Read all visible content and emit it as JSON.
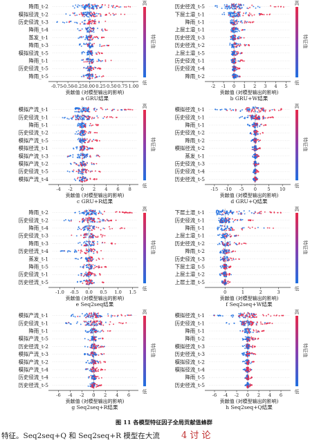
{
  "figure_caption": "图 11    各模型特征因子全局贡献值蜂群",
  "body_text": "特征。Seq2seq+Q 和 Seq2seq+R 模型在大流",
  "section_heading": "4  讨  论",
  "chart_data": [
    {
      "type": "scatter",
      "title": "a  GRU结果",
      "xlabel": "贡献值 (对模型输出的影响)",
      "colorbar": {
        "label": "特征值",
        "high": "高",
        "low": "低"
      },
      "features": [
        "降雨_t-2",
        "模拟径流_t-2",
        "历史径流_t-3",
        "降雨_t-4",
        "蒸发_t-1",
        "降雨_t-3",
        "模拟径流_t-5",
        "降雨_t-1",
        "历史径流_t-5",
        "降雨_t-5"
      ],
      "xticks": [
        -0.75,
        -0.5,
        -0.25,
        0.0,
        0.25,
        0.5,
        0.75,
        1.0
      ],
      "xtick_labels": [
        "-0.75",
        "-0.50",
        "-0.25",
        "0.00",
        "0.25",
        "0.50",
        "0.75",
        "1.00"
      ],
      "xlim": [
        -0.85,
        1.08
      ],
      "spread": [
        [
          -0.45,
          0.95
        ],
        [
          -0.55,
          0.8
        ],
        [
          -0.75,
          0.4
        ],
        [
          -0.3,
          0.5
        ],
        [
          -0.3,
          0.35
        ],
        [
          -0.25,
          0.45
        ],
        [
          -0.2,
          0.3
        ],
        [
          -0.2,
          0.5
        ],
        [
          -0.15,
          0.25
        ],
        [
          -0.2,
          0.35
        ]
      ]
    },
    {
      "type": "scatter",
      "title": "b  GRU+W结果",
      "xlabel": "贡献值 (对模型输出的影响)",
      "colorbar": {
        "label": "特征值",
        "high": "高",
        "low": "低"
      },
      "features": [
        "历史径流_t-5",
        "下层土湿_t-1",
        "降雨_t-1",
        "上层土湿_t-1",
        "历史径流_t-3",
        "历史径流_t-2",
        "上层土湿_t-5",
        "历史径流_t-1",
        "历史径流_t-4",
        "降雨_t-2"
      ],
      "xticks": [
        -2,
        -1,
        0,
        1,
        2,
        3,
        4,
        5
      ],
      "xtick_labels": [
        "-2",
        "-1",
        "0",
        "1",
        "2",
        "3",
        "4",
        "5"
      ],
      "xlim": [
        -2.4,
        5.3
      ],
      "spread": [
        [
          -1.8,
          5.0
        ],
        [
          -1.2,
          3.5
        ],
        [
          -0.5,
          2.0
        ],
        [
          -0.4,
          1.2
        ],
        [
          -0.4,
          1.0
        ],
        [
          -0.5,
          1.5
        ],
        [
          -0.3,
          0.8
        ],
        [
          -0.4,
          1.0
        ],
        [
          -0.3,
          0.6
        ],
        [
          -0.2,
          0.6
        ]
      ]
    },
    {
      "type": "scatter",
      "title": "c  GRU+R结果",
      "xlabel": "贡献值 (对模型输出的影响)",
      "colorbar": {
        "label": "特征值",
        "high": "高",
        "low": "低"
      },
      "features": [
        "模拟产流_t-1",
        "历史径流_t-1",
        "降雨_t-1",
        "历史径流_t-2",
        "模拟产流_t-5",
        "模拟径流_t-1",
        "模拟产流_t-3",
        "模拟产流_t-2",
        "历史径流_t-5",
        "模拟产流_t-4"
      ],
      "xticks": [
        -4,
        -2,
        0,
        2,
        4,
        6,
        8
      ],
      "xtick_labels": [
        "-4",
        "-2",
        "0",
        "2",
        "4",
        "6",
        "8"
      ],
      "xlim": [
        -5.0,
        9.2
      ],
      "spread": [
        [
          -1.5,
          8.5
        ],
        [
          -3.5,
          6.0
        ],
        [
          -1.0,
          3.0
        ],
        [
          -1.2,
          2.5
        ],
        [
          -1.0,
          3.0
        ],
        [
          -1.5,
          2.0
        ],
        [
          -2.5,
          4.0
        ],
        [
          -2.0,
          2.5
        ],
        [
          -2.5,
          3.0
        ],
        [
          -1.5,
          2.5
        ]
      ]
    },
    {
      "type": "scatter",
      "title": "d  GRU+Q结果",
      "xlabel": "贡献值 (对模型输出的影响)",
      "colorbar": {
        "label": "特征值",
        "high": "高",
        "low": "低"
      },
      "features": [
        "模拟径流_t-1",
        "历史径流_t-1",
        "降雨_t-1",
        "历史径流_t-2",
        "降雨_t-2",
        "模拟径流_t-2",
        "蒸发_t-1",
        "历史径流_t-3",
        "历史径流_t-4",
        "历史径流_t-5"
      ],
      "xticks": [
        -15,
        -10,
        -5,
        0,
        5,
        10
      ],
      "xtick_labels": [
        "-15",
        "-10",
        "-5",
        "0",
        "5",
        "10"
      ],
      "xlim": [
        -17,
        12.5
      ],
      "spread": [
        [
          -15.0,
          10.0
        ],
        [
          -6.0,
          7.0
        ],
        [
          -3.0,
          4.0
        ],
        [
          -2.0,
          3.0
        ],
        [
          -1.5,
          2.0
        ],
        [
          -1.5,
          2.0
        ],
        [
          -1.0,
          1.5
        ],
        [
          -1.0,
          1.5
        ],
        [
          -0.8,
          1.2
        ],
        [
          -0.8,
          1.0
        ]
      ]
    },
    {
      "type": "scatter",
      "title": "e  Seq2seq结果",
      "xlabel": "贡献值 (对模型输出的影响)",
      "colorbar": {
        "label": "特征值",
        "high": "高",
        "low": "低"
      },
      "features": [
        "降雨_t-2",
        "历史径流_t-2",
        "降雨_t-4",
        "历史径流_t-3",
        "降雨_t-3",
        "历史径流_t-4",
        "蒸发_t-1",
        "降雨_t-5",
        "历史径流_t-1",
        "历史径流_t-5"
      ],
      "xticks": [
        -1.0,
        -0.5,
        0.0,
        0.5,
        1.0,
        1.5
      ],
      "xtick_labels": [
        "-1.0",
        "-0.5",
        "0.0",
        "0.5",
        "1.0",
        "1.5"
      ],
      "xlim": [
        -1.25,
        1.65
      ],
      "spread": [
        [
          -0.5,
          1.5
        ],
        [
          -0.9,
          1.0
        ],
        [
          -0.4,
          1.3
        ],
        [
          -0.7,
          0.8
        ],
        [
          -0.4,
          1.0
        ],
        [
          -1.0,
          0.5
        ],
        [
          -0.5,
          0.5
        ],
        [
          -0.3,
          0.6
        ],
        [
          -0.5,
          0.4
        ],
        [
          -0.4,
          0.5
        ]
      ]
    },
    {
      "type": "scatter",
      "title": "f  Seq2seq+W结果",
      "xlabel": "贡献值 (对模型输出的影响)",
      "colorbar": {
        "label": "特征值",
        "high": "高",
        "low": "低"
      },
      "features": [
        "下层土湿_t-1",
        "历史径流_t-1",
        "降雨_t-1",
        "上层土湿_t-1",
        "历史径流_t-2",
        "降雨_t-2",
        "历史径流_t-3",
        "下层土湿_t-5",
        "上层土湿_t-2",
        "上层土湿_t-5"
      ],
      "xticks": [
        0,
        1,
        2,
        3
      ],
      "xtick_labels": [
        "0",
        "1",
        "2",
        "3"
      ],
      "xlim": [
        -0.9,
        3.6
      ],
      "spread": [
        [
          -0.5,
          3.4
        ],
        [
          -0.6,
          1.7
        ],
        [
          -0.6,
          2.9
        ],
        [
          -0.4,
          0.8
        ],
        [
          -0.4,
          1.2
        ],
        [
          -0.3,
          0.6
        ],
        [
          -0.4,
          0.8
        ],
        [
          -0.3,
          0.4
        ],
        [
          -0.3,
          0.4
        ],
        [
          -0.2,
          0.3
        ]
      ]
    },
    {
      "type": "scatter",
      "title": "g  Seq2seq+R结果",
      "xlabel": "贡献值 (对模型输出的影响)",
      "colorbar": {
        "label": "特征值",
        "high": "高",
        "low": "低"
      },
      "features": [
        "模拟产流_t-1",
        "历史径流_t-1",
        "降雨_t-1",
        "模拟产流_t-5",
        "历史径流_t-2",
        "模拟产流_t-3",
        "模拟产流_t-2",
        "模拟产流_t-4",
        "历史径流_t-4",
        "历史径流_t-5"
      ],
      "xticks": [
        -6,
        -4,
        -2,
        0,
        2,
        4,
        6
      ],
      "xtick_labels": [
        "-6",
        "-4",
        "-2",
        "0",
        "2",
        "4",
        "6"
      ],
      "xlim": [
        -7.0,
        7.4
      ],
      "spread": [
        [
          -4.5,
          7.0
        ],
        [
          -5.0,
          6.0
        ],
        [
          -1.5,
          3.0
        ],
        [
          -1.5,
          2.0
        ],
        [
          -1.5,
          2.0
        ],
        [
          -2.0,
          2.0
        ],
        [
          -1.5,
          2.0
        ],
        [
          -1.5,
          2.0
        ],
        [
          -1.0,
          1.5
        ],
        [
          -1.0,
          1.5
        ]
      ]
    },
    {
      "type": "scatter",
      "title": "h  Seq2seq+Q结果",
      "xlabel": "贡献值 (对模型输出的影响)",
      "colorbar": {
        "label": "特征值",
        "high": "高",
        "low": "低"
      },
      "features": [
        "模拟径流_t-1",
        "历史径流_t-1",
        "降雨_t-1",
        "降雨_t-2",
        "模拟径流_t-3",
        "历史径流_t-3",
        "模拟径流_t-2",
        "模拟径流_t-4",
        "降雨_t-5",
        "历史径流_t-5"
      ],
      "xticks": [
        -6,
        -4,
        -2,
        0,
        2,
        4,
        6
      ],
      "xtick_labels": [
        "-6",
        "-4",
        "-2",
        "0",
        "2",
        "4",
        "6"
      ],
      "xlim": [
        -7.0,
        7.5
      ],
      "spread": [
        [
          -6.5,
          6.5
        ],
        [
          -4.0,
          5.0
        ],
        [
          -1.5,
          3.0
        ],
        [
          -1.0,
          2.0
        ],
        [
          -1.0,
          1.5
        ],
        [
          -1.0,
          1.5
        ],
        [
          -1.0,
          1.2
        ],
        [
          -0.8,
          1.0
        ],
        [
          -0.6,
          0.8
        ],
        [
          -0.5,
          0.8
        ]
      ]
    }
  ]
}
